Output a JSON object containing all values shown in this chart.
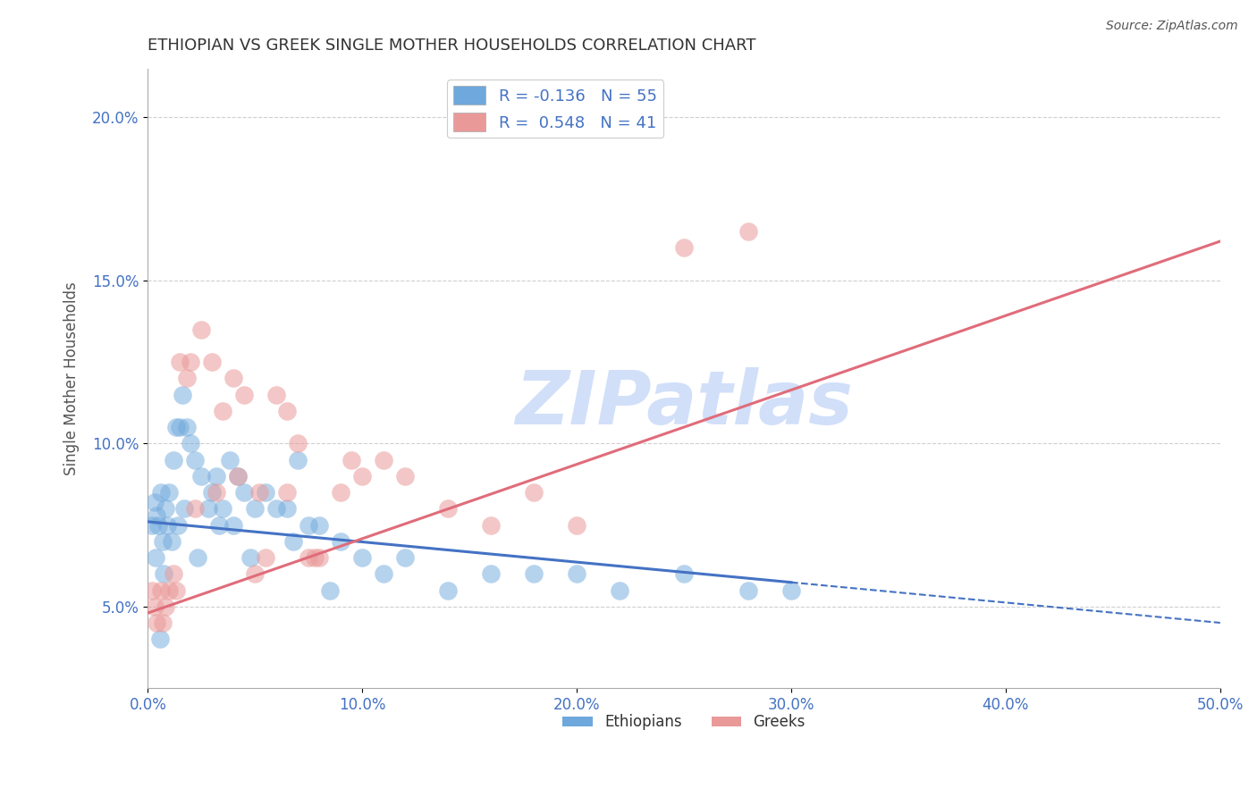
{
  "title": "ETHIOPIAN VS GREEK SINGLE MOTHER HOUSEHOLDS CORRELATION CHART",
  "source": "Source: ZipAtlas.com",
  "ylabel": "Single Mother Households",
  "xlim": [
    0.0,
    50.0
  ],
  "ylim": [
    2.5,
    21.5
  ],
  "legend_blue": "R = -0.136   N = 55",
  "legend_pink": "R =  0.548   N = 41",
  "legend_label_blue": "Ethiopians",
  "legend_label_pink": "Greeks",
  "blue_color": "#6fa8dc",
  "pink_color": "#ea9999",
  "trend_blue_color": "#4472c4",
  "trend_pink_color": "#e06c7a",
  "watermark": "ZIPatlas",
  "watermark_color": "#c9daf8",
  "background": "#ffffff",
  "grid_color": "#bbbbbb",
  "title_color": "#333333",
  "axis_label_color": "#555555",
  "tick_color": "#4472c4",
  "blue_trend_x0": 0.0,
  "blue_trend_y0": 7.6,
  "blue_trend_x1": 50.0,
  "blue_trend_y1": 4.5,
  "blue_solid_end": 30.0,
  "pink_trend_x0": 0.0,
  "pink_trend_y0": 4.8,
  "pink_trend_x1": 50.0,
  "pink_trend_y1": 16.2,
  "ethiopian_x": [
    0.2,
    0.3,
    0.4,
    0.5,
    0.6,
    0.7,
    0.8,
    0.9,
    1.0,
    1.1,
    1.2,
    1.3,
    1.5,
    1.6,
    1.8,
    2.0,
    2.2,
    2.5,
    2.8,
    3.0,
    3.2,
    3.5,
    3.8,
    4.0,
    4.2,
    4.5,
    5.0,
    5.5,
    6.0,
    6.5,
    7.0,
    7.5,
    8.0,
    9.0,
    10.0,
    11.0,
    12.0,
    14.0,
    16.0,
    18.0,
    20.0,
    22.0,
    25.0,
    28.0,
    30.0,
    1.4,
    1.7,
    2.3,
    3.3,
    4.8,
    6.8,
    8.5,
    0.35,
    0.55,
    0.75
  ],
  "ethiopian_y": [
    7.5,
    8.2,
    7.8,
    7.5,
    8.5,
    7.0,
    8.0,
    7.5,
    8.5,
    7.0,
    9.5,
    10.5,
    10.5,
    11.5,
    10.5,
    10.0,
    9.5,
    9.0,
    8.0,
    8.5,
    9.0,
    8.0,
    9.5,
    7.5,
    9.0,
    8.5,
    8.0,
    8.5,
    8.0,
    8.0,
    9.5,
    7.5,
    7.5,
    7.0,
    6.5,
    6.0,
    6.5,
    5.5,
    6.0,
    6.0,
    6.0,
    5.5,
    6.0,
    5.5,
    5.5,
    7.5,
    8.0,
    6.5,
    7.5,
    6.5,
    7.0,
    5.5,
    6.5,
    4.0,
    6.0
  ],
  "greek_x": [
    0.2,
    0.4,
    0.6,
    0.8,
    1.0,
    1.2,
    1.5,
    1.8,
    2.0,
    2.5,
    3.0,
    3.5,
    4.0,
    4.5,
    5.0,
    5.5,
    6.0,
    6.5,
    7.0,
    7.5,
    8.0,
    9.0,
    10.0,
    11.0,
    12.0,
    14.0,
    16.0,
    18.0,
    20.0,
    25.0,
    28.0,
    0.3,
    0.7,
    1.3,
    2.2,
    3.2,
    4.2,
    5.2,
    6.5,
    7.8,
    9.5
  ],
  "greek_y": [
    5.5,
    4.5,
    5.5,
    5.0,
    5.5,
    6.0,
    12.5,
    12.0,
    12.5,
    13.5,
    12.5,
    11.0,
    12.0,
    11.5,
    6.0,
    6.5,
    11.5,
    11.0,
    10.0,
    6.5,
    6.5,
    8.5,
    9.0,
    9.5,
    9.0,
    8.0,
    7.5,
    8.5,
    7.5,
    16.0,
    16.5,
    5.0,
    4.5,
    5.5,
    8.0,
    8.5,
    9.0,
    8.5,
    8.5,
    6.5,
    9.5
  ]
}
